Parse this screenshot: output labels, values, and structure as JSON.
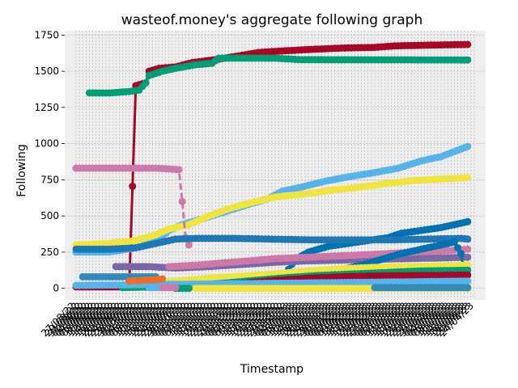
{
  "chart_data": {
    "type": "line",
    "title": "wasteof.money's aggregate following graph",
    "xlabel": "Timestamp",
    "ylabel": "Following",
    "ylim": [
      -80,
      1780
    ],
    "yticks": [
      0,
      250,
      500,
      750,
      1000,
      1250,
      1500,
      1750
    ],
    "grid": true,
    "background": "#eeeeee",
    "x": [
      "27/08/22",
      "29/08/22",
      "31/08/22",
      "02/09/22",
      "04/09/22",
      "06/09/22",
      "08/09/22",
      "10/09/22",
      "12/09/22",
      "14/09/22",
      "16/09/22",
      "18/09/22",
      "20/09/22",
      "22/09/22",
      "24/09/22",
      "26/09/22",
      "28/09/22",
      "30/09/22",
      "02/10/22",
      "04/10/22",
      "06/10/22",
      "08/10/22",
      "10/10/22",
      "12/10/22",
      "14/10/22",
      "16/10/22",
      "18/10/22",
      "20/10/22",
      "22/10/22",
      "24/10/22",
      "26/10/22",
      "28/10/22",
      "30/10/22",
      "01/11/22",
      "03/11/22",
      "05/11/22",
      "07/11/22",
      "09/11/22",
      "11/11/22",
      "13/11/22",
      "15/11/22",
      "17/11/22",
      "19/11/22",
      "21/11/22",
      "23/11/22",
      "25/11/22",
      "27/11/22",
      "29/11/22",
      "01/12/22",
      "03/12/22",
      "05/12/22",
      "07/12/22",
      "09/12/22",
      "11/12/22",
      "13/12/22",
      "15/12/22",
      "17/12/22",
      "19/12/22",
      "21/12/22",
      "23/12/22",
      "25/12/22",
      "27/12/22",
      "29/12/22",
      "31/12/22",
      "02/01/23",
      "04/01/23",
      "06/01/23",
      "08/01/23",
      "10/01/23",
      "12/01/23",
      "14/01/23",
      "16/01/23",
      "18/01/23",
      "20/01/23",
      "22/01/23",
      "24/01/23",
      "26/01/23",
      "28/01/23",
      "30/01/23",
      "01/02/23",
      "03/02/23",
      "05/02/23",
      "07/02/23",
      "09/02/23",
      "11/02/23",
      "13/02/23",
      "15/02/23",
      "17/02/23",
      "19/02/23",
      "21/02/23",
      "23/02/23",
      "25/02/23",
      "27/02/23",
      "01/03/23",
      "03/03/23",
      "05/03/23",
      "07/03/23",
      "09/03/23",
      "11/03/23",
      "13/03/23",
      "15/03/23",
      "17/03/23",
      "19/03/23",
      "21/03/23",
      "23/03/23",
      "25/03/23",
      "27/03/23",
      "29/03/23",
      "31/03/23",
      "02/04/23",
      "04/04/23",
      "06/04/23",
      "08/04/23",
      "10/04/23",
      "12/04/23",
      "14/04/23",
      "16/04/23",
      "18/04/23",
      "20/04/23",
      "22/04/23",
      "24/04/23"
    ],
    "series": [
      {
        "color": "#a60628",
        "values": [
          {
            "i": 0,
            "v": 10
          },
          {
            "i": 8,
            "v": 10
          },
          {
            "i": 16,
            "v": 10
          },
          {
            "i": 18,
            "v": 1400
          },
          {
            "i": 21,
            "v": 1420
          },
          {
            "i": 22,
            "v": 1500
          },
          {
            "i": 25,
            "v": 1520
          },
          {
            "i": 30,
            "v": 1530
          },
          {
            "i": 35,
            "v": 1560
          },
          {
            "i": 42,
            "v": 1580
          },
          {
            "i": 50,
            "v": 1610
          },
          {
            "i": 55,
            "v": 1630
          },
          {
            "i": 62,
            "v": 1640
          },
          {
            "i": 70,
            "v": 1650
          },
          {
            "i": 80,
            "v": 1660
          },
          {
            "i": 90,
            "v": 1665
          },
          {
            "i": 96,
            "v": 1675
          },
          {
            "i": 106,
            "v": 1680
          },
          {
            "i": 118,
            "v": 1685
          }
        ]
      },
      {
        "color": "#009e73",
        "values": [
          {
            "i": 4,
            "v": 1350
          },
          {
            "i": 10,
            "v": 1350
          },
          {
            "i": 16,
            "v": 1360
          },
          {
            "i": 19,
            "v": 1370
          },
          {
            "i": 21,
            "v": 1420
          },
          {
            "i": 22,
            "v": 1470
          },
          {
            "i": 26,
            "v": 1500
          },
          {
            "i": 30,
            "v": 1520
          },
          {
            "i": 36,
            "v": 1545
          },
          {
            "i": 41,
            "v": 1555
          },
          {
            "i": 43,
            "v": 1590
          },
          {
            "i": 60,
            "v": 1590
          },
          {
            "i": 68,
            "v": 1580
          },
          {
            "i": 118,
            "v": 1578
          }
        ]
      },
      {
        "color": "#56b4e9",
        "values": [
          {
            "i": 0,
            "v": 250
          },
          {
            "i": 10,
            "v": 250
          },
          {
            "i": 18,
            "v": 280
          },
          {
            "i": 24,
            "v": 320
          },
          {
            "i": 28,
            "v": 400
          },
          {
            "i": 32,
            "v": 440
          },
          {
            "i": 38,
            "v": 480
          },
          {
            "i": 45,
            "v": 530
          },
          {
            "i": 52,
            "v": 580
          },
          {
            "i": 58,
            "v": 620
          },
          {
            "i": 62,
            "v": 670
          },
          {
            "i": 68,
            "v": 700
          },
          {
            "i": 75,
            "v": 740
          },
          {
            "i": 82,
            "v": 770
          },
          {
            "i": 90,
            "v": 800
          },
          {
            "i": 97,
            "v": 830
          },
          {
            "i": 104,
            "v": 880
          },
          {
            "i": 110,
            "v": 910
          },
          {
            "i": 118,
            "v": 980
          }
        ]
      },
      {
        "color": "#f0e442",
        "values": [
          {
            "i": 0,
            "v": 300
          },
          {
            "i": 10,
            "v": 310
          },
          {
            "i": 18,
            "v": 330
          },
          {
            "i": 24,
            "v": 370
          },
          {
            "i": 28,
            "v": 410
          },
          {
            "i": 34,
            "v": 440
          },
          {
            "i": 40,
            "v": 500
          },
          {
            "i": 46,
            "v": 550
          },
          {
            "i": 54,
            "v": 600
          },
          {
            "i": 60,
            "v": 630
          },
          {
            "i": 68,
            "v": 650
          },
          {
            "i": 78,
            "v": 680
          },
          {
            "i": 86,
            "v": 700
          },
          {
            "i": 94,
            "v": 725
          },
          {
            "i": 102,
            "v": 745
          },
          {
            "i": 110,
            "v": 755
          },
          {
            "i": 118,
            "v": 765
          }
        ]
      },
      {
        "color": "#cc79a7",
        "dashed": true,
        "values": [
          {
            "i": 0,
            "v": 830
          },
          {
            "i": 12,
            "v": 830
          },
          {
            "i": 24,
            "v": 830
          },
          {
            "i": 28,
            "v": 825
          },
          {
            "i": 31,
            "v": 820
          },
          {
            "i": 32,
            "v": 600
          },
          {
            "i": 33,
            "v": 350
          },
          {
            "i": 34,
            "v": 300
          }
        ]
      },
      {
        "color": "#0072b2",
        "values": [
          {
            "i": 58,
            "v": 5
          },
          {
            "i": 62,
            "v": 60
          },
          {
            "i": 66,
            "v": 200
          },
          {
            "i": 70,
            "v": 250
          },
          {
            "i": 76,
            "v": 290
          },
          {
            "i": 82,
            "v": 310
          },
          {
            "i": 88,
            "v": 330
          },
          {
            "i": 94,
            "v": 350
          },
          {
            "i": 98,
            "v": 380
          },
          {
            "i": 104,
            "v": 400
          },
          {
            "i": 110,
            "v": 420
          },
          {
            "i": 118,
            "v": 460
          }
        ]
      },
      {
        "color": "#1f77b4",
        "values": [
          {
            "i": 0,
            "v": 270
          },
          {
            "i": 10,
            "v": 270
          },
          {
            "i": 18,
            "v": 280
          },
          {
            "i": 24,
            "v": 310
          },
          {
            "i": 28,
            "v": 330
          },
          {
            "i": 30,
            "v": 340
          },
          {
            "i": 36,
            "v": 345
          },
          {
            "i": 48,
            "v": 345
          },
          {
            "i": 58,
            "v": 340
          },
          {
            "i": 70,
            "v": 335
          },
          {
            "i": 84,
            "v": 335
          },
          {
            "i": 96,
            "v": 335
          },
          {
            "i": 106,
            "v": 340
          },
          {
            "i": 116,
            "v": 345
          },
          {
            "i": 118,
            "v": 340
          }
        ]
      },
      {
        "color": "#348abd",
        "values": [
          {
            "i": 2,
            "v": 80
          },
          {
            "i": 12,
            "v": 80
          },
          {
            "i": 18,
            "v": 80
          },
          {
            "i": 24,
            "v": 80
          }
        ]
      },
      {
        "color": "#7a68a6",
        "values": [
          {
            "i": 12,
            "v": 150
          },
          {
            "i": 22,
            "v": 150
          },
          {
            "i": 30,
            "v": 140
          },
          {
            "i": 40,
            "v": 150
          },
          {
            "i": 50,
            "v": 165
          },
          {
            "i": 60,
            "v": 180
          },
          {
            "i": 70,
            "v": 190
          },
          {
            "i": 80,
            "v": 195
          },
          {
            "i": 90,
            "v": 200
          },
          {
            "i": 100,
            "v": 205
          },
          {
            "i": 110,
            "v": 210
          },
          {
            "i": 118,
            "v": 215
          }
        ]
      },
      {
        "color": "#cc79a7",
        "values": [
          {
            "i": 28,
            "v": 150
          },
          {
            "i": 36,
            "v": 160
          },
          {
            "i": 44,
            "v": 175
          },
          {
            "i": 52,
            "v": 190
          },
          {
            "i": 60,
            "v": 205
          },
          {
            "i": 70,
            "v": 215
          },
          {
            "i": 80,
            "v": 225
          },
          {
            "i": 90,
            "v": 235
          },
          {
            "i": 100,
            "v": 248
          },
          {
            "i": 110,
            "v": 258
          },
          {
            "i": 118,
            "v": 270
          }
        ]
      },
      {
        "color": "#0072b2",
        "values": [
          {
            "i": 66,
            "v": 30
          },
          {
            "i": 74,
            "v": 80
          },
          {
            "i": 80,
            "v": 130
          },
          {
            "i": 86,
            "v": 160
          },
          {
            "i": 92,
            "v": 200
          },
          {
            "i": 98,
            "v": 240
          },
          {
            "i": 104,
            "v": 270
          },
          {
            "i": 110,
            "v": 300
          },
          {
            "i": 114,
            "v": 320
          },
          {
            "i": 116,
            "v": 240
          },
          {
            "i": 117,
            "v": 100
          },
          {
            "i": 118,
            "v": 0
          }
        ]
      },
      {
        "color": "#f0e442",
        "values": [
          {
            "i": 20,
            "v": 30
          },
          {
            "i": 30,
            "v": 50
          },
          {
            "i": 40,
            "v": 70
          },
          {
            "i": 50,
            "v": 85
          },
          {
            "i": 60,
            "v": 100
          },
          {
            "i": 70,
            "v": 120
          },
          {
            "i": 80,
            "v": 135
          },
          {
            "i": 90,
            "v": 145
          },
          {
            "i": 100,
            "v": 150
          },
          {
            "i": 110,
            "v": 155
          },
          {
            "i": 118,
            "v": 160
          }
        ]
      },
      {
        "color": "#009e73",
        "values": [
          {
            "i": 14,
            "v": 5
          },
          {
            "i": 24,
            "v": 10
          },
          {
            "i": 34,
            "v": 20
          },
          {
            "i": 44,
            "v": 35
          },
          {
            "i": 54,
            "v": 55
          },
          {
            "i": 64,
            "v": 75
          },
          {
            "i": 74,
            "v": 90
          },
          {
            "i": 84,
            "v": 100
          },
          {
            "i": 94,
            "v": 110
          },
          {
            "i": 104,
            "v": 120
          },
          {
            "i": 118,
            "v": 125
          }
        ]
      },
      {
        "color": "#a60628",
        "values": [
          {
            "i": 30,
            "v": 10
          },
          {
            "i": 40,
            "v": 20
          },
          {
            "i": 50,
            "v": 35
          },
          {
            "i": 60,
            "v": 55
          },
          {
            "i": 70,
            "v": 70
          },
          {
            "i": 80,
            "v": 80
          },
          {
            "i": 90,
            "v": 85
          },
          {
            "i": 100,
            "v": 88
          },
          {
            "i": 110,
            "v": 90
          },
          {
            "i": 118,
            "v": 92
          }
        ]
      },
      {
        "color": "#56b4e9",
        "values": [
          {
            "i": 0,
            "v": 20
          },
          {
            "i": 20,
            "v": 25
          },
          {
            "i": 40,
            "v": 30
          },
          {
            "i": 60,
            "v": 35
          },
          {
            "i": 80,
            "v": 40
          },
          {
            "i": 100,
            "v": 45
          },
          {
            "i": 118,
            "v": 50
          }
        ]
      },
      {
        "color": "#e8702a",
        "values": [
          {
            "i": 16,
            "v": 50
          },
          {
            "i": 20,
            "v": 55
          },
          {
            "i": 24,
            "v": 60
          },
          {
            "i": 26,
            "v": 65
          }
        ]
      },
      {
        "color": "#f0e442",
        "values": [
          {
            "i": 36,
            "v": 0
          },
          {
            "i": 60,
            "v": 0
          },
          {
            "i": 80,
            "v": 0
          },
          {
            "i": 100,
            "v": 0
          },
          {
            "i": 118,
            "v": 0
          }
        ]
      },
      {
        "color": "#56b4e9",
        "values": [
          {
            "i": 22,
            "v": 5
          },
          {
            "i": 28,
            "v": 5
          }
        ]
      },
      {
        "color": "#009e73",
        "values": [
          {
            "i": 30,
            "v": 0
          },
          {
            "i": 34,
            "v": 0
          }
        ]
      },
      {
        "color": "#cc79a7",
        "values": [
          {
            "i": 26,
            "v": 5
          },
          {
            "i": 30,
            "v": 5
          }
        ]
      },
      {
        "color": "#348abd",
        "values": [
          {
            "i": 90,
            "v": 5
          },
          {
            "i": 100,
            "v": 5
          },
          {
            "i": 110,
            "v": 5
          },
          {
            "i": 118,
            "v": 5
          }
        ]
      }
    ]
  }
}
